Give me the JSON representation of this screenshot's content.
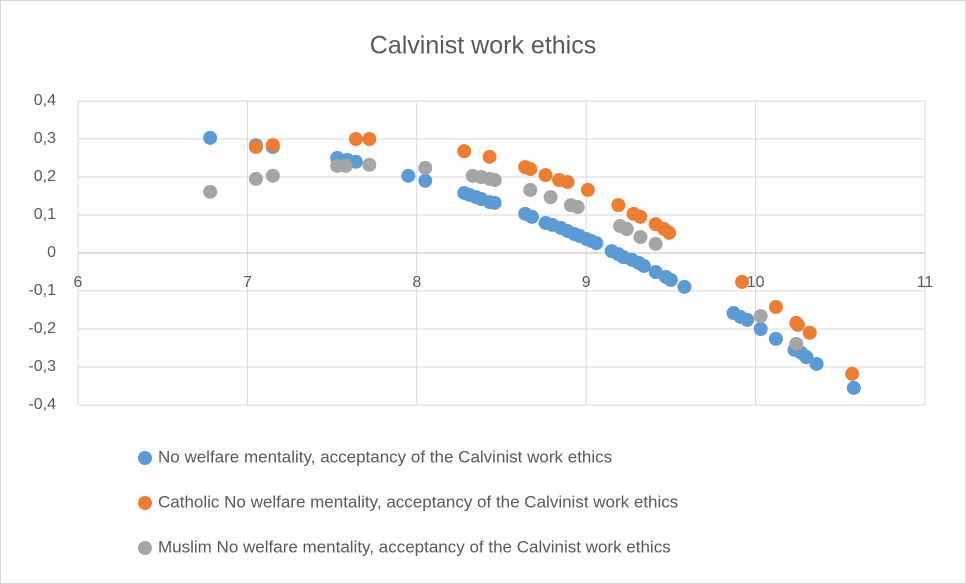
{
  "chart_data": {
    "type": "scatter",
    "title": "Calvinist work ethics",
    "xlim": [
      6,
      11
    ],
    "xticks": [
      6,
      7,
      8,
      9,
      10,
      11
    ],
    "ylim": [
      -0.4,
      0.4
    ],
    "yticks": [
      {
        "value": -0.4,
        "label": "-0,4"
      },
      {
        "value": -0.3,
        "label": "-0,3"
      },
      {
        "value": -0.2,
        "label": "-0,2"
      },
      {
        "value": -0.1,
        "label": "-0,1"
      },
      {
        "value": 0,
        "label": "0"
      },
      {
        "value": 0.1,
        "label": "0,1"
      },
      {
        "value": 0.2,
        "label": "0,2"
      },
      {
        "value": 0.3,
        "label": "0,3"
      },
      {
        "value": 0.4,
        "label": "0,4"
      }
    ],
    "grid": true,
    "legend": "bottom",
    "series": [
      {
        "name": "No welfare mentality, acceptancy of the Calvinist work ethics",
        "color": "#5b9bd5",
        "x": [
          6.78,
          7.05,
          7.15,
          7.53,
          7.59,
          7.64,
          7.95,
          8.05,
          8.28,
          8.31,
          8.35,
          8.38,
          8.43,
          8.46,
          8.64,
          8.68,
          8.76,
          8.8,
          8.85,
          8.89,
          8.93,
          8.96,
          9.0,
          9.03,
          9.06,
          9.15,
          9.19,
          9.22,
          9.27,
          9.31,
          9.34,
          9.41,
          9.47,
          9.5,
          9.58,
          9.87,
          9.91,
          9.95,
          10.03,
          10.12,
          10.23,
          10.27,
          10.3,
          10.36,
          10.58
        ],
        "values": [
          0.303,
          0.284,
          0.279,
          0.25,
          0.245,
          0.24,
          0.203,
          0.19,
          0.158,
          0.153,
          0.147,
          0.142,
          0.134,
          0.132,
          0.103,
          0.095,
          0.079,
          0.074,
          0.066,
          0.058,
          0.05,
          0.045,
          0.037,
          0.032,
          0.026,
          0.005,
          -0.003,
          -0.011,
          -0.018,
          -0.026,
          -0.034,
          -0.05,
          -0.063,
          -0.071,
          -0.089,
          -0.158,
          -0.168,
          -0.176,
          -0.2,
          -0.226,
          -0.255,
          -0.263,
          -0.274,
          -0.292,
          -0.355
        ]
      },
      {
        "name": "Catholic No welfare mentality, acceptancy of the Calvinist work ethics",
        "color": "#ed7d31",
        "x": [
          7.05,
          7.15,
          7.64,
          7.72,
          8.28,
          8.43,
          8.64,
          8.67,
          8.76,
          8.84,
          8.89,
          9.01,
          9.19,
          9.28,
          9.32,
          9.41,
          9.46,
          9.49,
          9.92,
          10.12,
          10.24,
          10.25,
          10.32,
          10.57
        ],
        "values": [
          0.279,
          0.284,
          0.3,
          0.3,
          0.268,
          0.253,
          0.226,
          0.221,
          0.205,
          0.192,
          0.187,
          0.166,
          0.126,
          0.103,
          0.095,
          0.076,
          0.063,
          0.053,
          -0.076,
          -0.142,
          -0.184,
          -0.189,
          -0.21,
          -0.318
        ]
      },
      {
        "name": "Muslim No welfare mentality, acceptancy of the Calvinist work ethics",
        "color": "#a5a5a5",
        "x": [
          6.78,
          7.05,
          7.15,
          7.53,
          7.58,
          7.72,
          8.05,
          8.33,
          8.38,
          8.43,
          8.46,
          8.67,
          8.79,
          8.91,
          8.95,
          9.2,
          9.24,
          9.32,
          9.41,
          10.03,
          10.24
        ],
        "values": [
          0.161,
          0.195,
          0.203,
          0.229,
          0.229,
          0.232,
          0.224,
          0.203,
          0.2,
          0.195,
          0.192,
          0.166,
          0.147,
          0.126,
          0.121,
          0.071,
          0.063,
          0.042,
          0.024,
          -0.166,
          -0.239
        ]
      }
    ]
  }
}
